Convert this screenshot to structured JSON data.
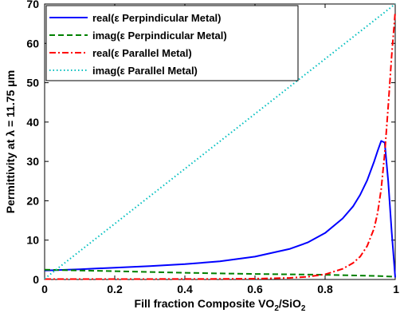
{
  "chart_data": {
    "type": "line",
    "xlabel": {
      "prefix": "Fill fraction Composite VO",
      "sub1": "2",
      "mid": "/SiO",
      "sub2": "2"
    },
    "ylabel": {
      "prefix": "Permittivity at  ",
      "lambda": "λ",
      "suffix": " = 11.75 μm"
    },
    "xlim": [
      0,
      1
    ],
    "ylim": [
      0,
      70
    ],
    "x_ticks": [
      "0",
      "0.2",
      "0.4",
      "0.6",
      "0.8",
      "1"
    ],
    "x_tick_values": [
      0,
      0.2,
      0.4,
      0.6,
      0.8,
      1
    ],
    "y_ticks": [
      "0",
      "10",
      "20",
      "30",
      "40",
      "50",
      "60",
      "70"
    ],
    "y_tick_values": [
      0,
      10,
      20,
      30,
      40,
      50,
      60,
      70
    ],
    "legend_position": "top-left",
    "series": [
      {
        "name": "real(ε Perpindicular Metal)",
        "color": "#0000ff",
        "style": "solid",
        "x": [
          0,
          0.1,
          0.2,
          0.3,
          0.4,
          0.5,
          0.6,
          0.7,
          0.75,
          0.8,
          0.85,
          0.88,
          0.9,
          0.92,
          0.94,
          0.95,
          0.96,
          0.97,
          0.98,
          0.99,
          1.0
        ],
        "y": [
          2.3,
          2.6,
          3.0,
          3.4,
          3.9,
          4.6,
          5.8,
          7.8,
          9.4,
          11.8,
          15.5,
          18.6,
          21.5,
          25.2,
          30.0,
          32.7,
          35.2,
          34.8,
          25.0,
          12.0,
          0.5
        ]
      },
      {
        "name": "imag(ε Perpindicular Metal)",
        "color": "#008000",
        "style": "dashed",
        "x": [
          0,
          0.1,
          0.2,
          0.3,
          0.4,
          0.5,
          0.6,
          0.7,
          0.8,
          0.9,
          0.95,
          1.0
        ],
        "y": [
          2.5,
          2.3,
          2.1,
          1.9,
          1.7,
          1.55,
          1.4,
          1.3,
          1.2,
          1.0,
          0.9,
          0.7
        ]
      },
      {
        "name": "real(ε Parallel Metal)",
        "color": "#ff0000",
        "style": "dashdot",
        "x": [
          0,
          0.2,
          0.4,
          0.5,
          0.6,
          0.7,
          0.75,
          0.8,
          0.85,
          0.88,
          0.9,
          0.92,
          0.94,
          0.95,
          0.96,
          0.97,
          0.98,
          0.99,
          1.0
        ],
        "y": [
          0.1,
          0.1,
          0.12,
          0.15,
          0.2,
          0.4,
          0.7,
          1.3,
          2.7,
          4.2,
          5.8,
          8.5,
          13.0,
          17.0,
          23.0,
          32.0,
          44.0,
          57.0,
          68.0
        ]
      },
      {
        "name": "imag(ε Parallel Metal)",
        "color": "#00bfbf",
        "style": "dotted",
        "x": [
          0,
          1
        ],
        "y": [
          0.2,
          70
        ]
      }
    ]
  }
}
